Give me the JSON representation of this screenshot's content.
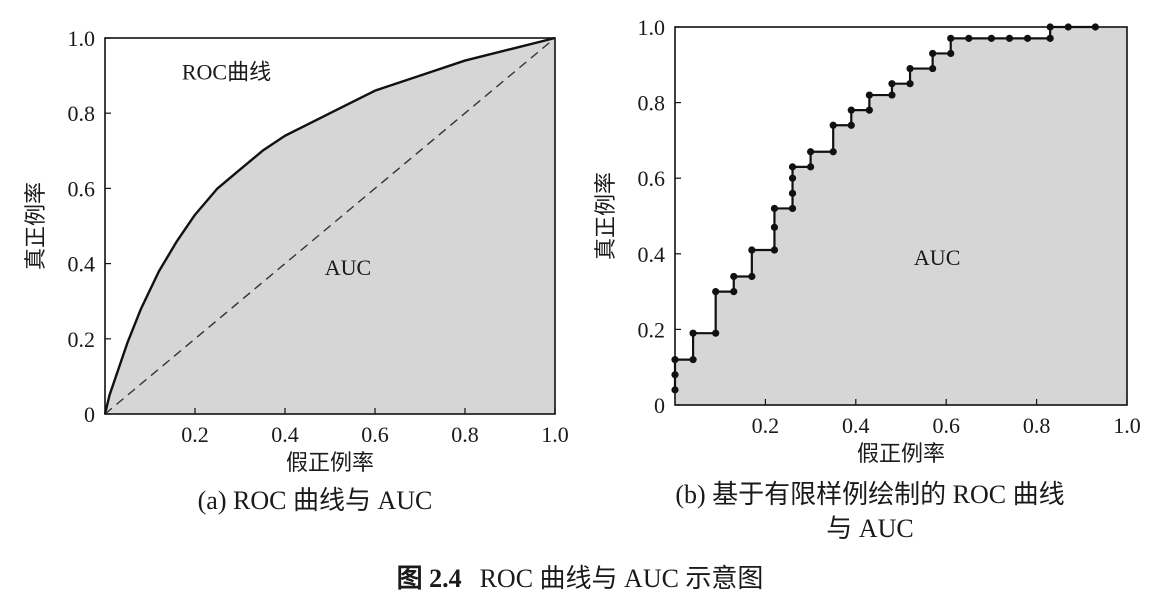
{
  "figure_caption": {
    "number": "图 2.4",
    "text": "ROC 曲线与 AUC 示意图"
  },
  "chart_data": [
    {
      "type": "area",
      "caption": "(a) ROC 曲线与 AUC",
      "xlabel": "假正例率",
      "ylabel": "真正例率",
      "xlim": [
        0,
        1
      ],
      "ylim": [
        0,
        1
      ],
      "x_ticks": [
        "0.2",
        "0.4",
        "0.6",
        "0.8",
        "1.0"
      ],
      "y_ticks": [
        "0",
        "0.2",
        "0.4",
        "0.6",
        "0.8",
        "1.0"
      ],
      "grid": false,
      "annotations": {
        "curve": "ROC曲线",
        "area": "AUC"
      },
      "series": [
        {
          "style": "solid",
          "x": [
            0,
            0.01,
            0.03,
            0.05,
            0.08,
            0.12,
            0.16,
            0.2,
            0.25,
            0.3,
            0.35,
            0.4,
            0.5,
            0.6,
            0.7,
            0.8,
            0.9,
            1.0
          ],
          "y": [
            0,
            0.05,
            0.12,
            0.19,
            0.28,
            0.38,
            0.46,
            0.53,
            0.6,
            0.65,
            0.7,
            0.74,
            0.8,
            0.86,
            0.9,
            0.94,
            0.97,
            1.0
          ]
        },
        {
          "style": "dashed",
          "x": [
            0,
            1
          ],
          "y": [
            0,
            1
          ]
        }
      ]
    },
    {
      "type": "area",
      "caption_lines": [
        "(b) 基于有限样例绘制的 ROC 曲线",
        "与 AUC"
      ],
      "xlabel": "假正例率",
      "ylabel": "真正例率",
      "xlim": [
        0,
        1
      ],
      "ylim": [
        0,
        1
      ],
      "x_ticks": [
        "0.2",
        "0.4",
        "0.6",
        "0.8",
        "1.0"
      ],
      "y_ticks": [
        "0",
        "0.2",
        "0.4",
        "0.6",
        "0.8",
        "1.0"
      ],
      "grid": false,
      "annotations": {
        "area": "AUC"
      },
      "series": [
        {
          "style": "step-with-markers",
          "x": [
            0,
            0,
            0,
            0.04,
            0.04,
            0.09,
            0.09,
            0.13,
            0.13,
            0.17,
            0.17,
            0.22,
            0.22,
            0.22,
            0.26,
            0.26,
            0.26,
            0.26,
            0.3,
            0.3,
            0.35,
            0.35,
            0.39,
            0.39,
            0.43,
            0.43,
            0.48,
            0.48,
            0.52,
            0.52,
            0.57,
            0.57,
            0.61,
            0.61,
            0.65,
            0.7,
            0.74,
            0.78,
            0.83,
            0.83,
            0.87,
            0.93
          ],
          "y": [
            0.04,
            0.08,
            0.12,
            0.12,
            0.19,
            0.19,
            0.3,
            0.3,
            0.34,
            0.34,
            0.41,
            0.41,
            0.47,
            0.52,
            0.52,
            0.56,
            0.6,
            0.63,
            0.63,
            0.67,
            0.67,
            0.74,
            0.74,
            0.78,
            0.78,
            0.82,
            0.82,
            0.85,
            0.85,
            0.89,
            0.89,
            0.93,
            0.93,
            0.97,
            0.97,
            0.97,
            0.97,
            0.97,
            0.97,
            1.0,
            1.0,
            1.0
          ]
        }
      ]
    }
  ]
}
